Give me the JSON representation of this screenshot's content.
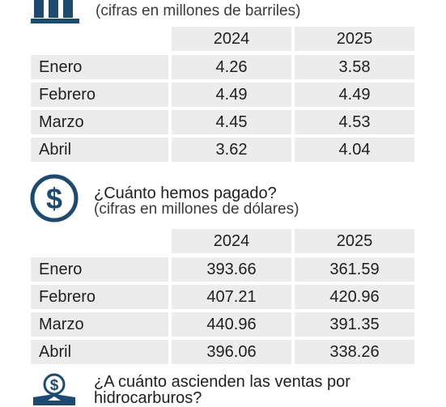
{
  "colors": {
    "accent": "#1d4a6e",
    "cell_bg": "#ececec"
  },
  "section1": {
    "icon": "oil-barrels-icon",
    "subtitle": "(cifras en millones de barriles)",
    "table": {
      "years": [
        "2024",
        "2025"
      ],
      "rows": [
        {
          "month": "Enero",
          "v2024": "4.26",
          "v2025": "3.58"
        },
        {
          "month": "Febrero",
          "v2024": "4.49",
          "v2025": "4.49"
        },
        {
          "month": "Marzo",
          "v2024": "4.45",
          "v2025": "4.53"
        },
        {
          "month": "Abril",
          "v2024": "3.62",
          "v2025": "4.04"
        }
      ]
    }
  },
  "section2": {
    "icon": "dollar-circle-icon",
    "question": "¿Cuánto hemos pagado?",
    "subtitle": "(cifras en millones de dólares)",
    "table": {
      "years": [
        "2024",
        "2025"
      ],
      "rows": [
        {
          "month": "Enero",
          "v2024": "393.66",
          "v2025": "361.59"
        },
        {
          "month": "Febrero",
          "v2024": "407.21",
          "v2025": "420.96"
        },
        {
          "month": "Marzo",
          "v2024": "440.96",
          "v2025": "391.35"
        },
        {
          "month": "Abril",
          "v2024": "396.06",
          "v2025": "338.26"
        }
      ]
    }
  },
  "section3": {
    "icon": "money-box-icon",
    "question_line1": "¿A cuánto ascienden las ventas por",
    "question_line2": "hidrocarburos?"
  }
}
